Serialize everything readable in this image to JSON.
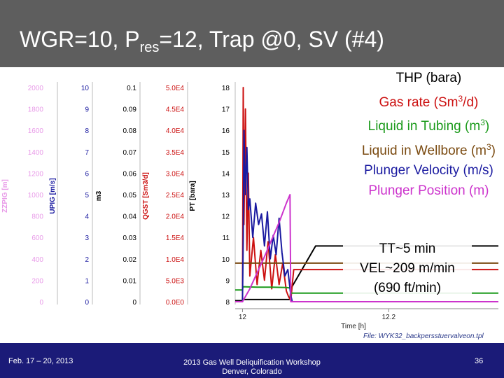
{
  "slide": {
    "title_main": "WGR=10, P",
    "title_sub": "res",
    "title_rest": "=12, Trap @0, SV (#4)"
  },
  "legend": [
    {
      "text": "THP (bara)",
      "color": "#000000"
    },
    {
      "text_before": "Gas rate (Sm",
      "sup": "3",
      "text_after": "/d)",
      "color": "#cc1111"
    },
    {
      "text_before": "Liquid in Tubing (m",
      "sup": "3",
      "text_after": ")",
      "color": "#1a9a1a"
    },
    {
      "text_before": "Liquid in Wellbore (m",
      "sup": "3",
      "text_after": ")",
      "color": "#7a4a10"
    },
    {
      "text": "Plunger Velocity (m/s)",
      "color": "#1a1aa0"
    },
    {
      "text": "Plunger Position (m)",
      "color": "#cc33cc"
    }
  ],
  "note": {
    "line1": "TT~5 min",
    "line2": "VEL~209 m/min",
    "line3": "(690 ft/min)"
  },
  "file_label": "File: WYK32_backpersstuervalveon.tpl",
  "footer": {
    "date": "Feb. 17 – 20, 2013",
    "center_line1": "2013 Gas Well Deliquification Workshop",
    "center_line2": "Denver, Colorado",
    "page": "36"
  },
  "chart_data": {
    "type": "line",
    "xlabel": "Time [h]",
    "x_ticks": [
      "12",
      "12.2"
    ],
    "xlim": [
      11.99,
      12.35
    ],
    "axes": [
      {
        "label": "ZZPIG [m]",
        "color": "#e89ae8",
        "ticks": [
          "2000",
          "1800",
          "1600",
          "1400",
          "1200",
          "1000",
          "800",
          "600",
          "400",
          "200",
          "0"
        ]
      },
      {
        "label": "UPIG [m/s]",
        "color": "#1a1aa0",
        "ticks": [
          "10",
          "9",
          "8",
          "7",
          "6",
          "5",
          "4",
          "3",
          "2",
          "1",
          "0"
        ]
      },
      {
        "label": "m3",
        "color": "#000000",
        "ticks": [
          "0.1",
          "0.09",
          "0.08",
          "0.07",
          "0.06",
          "0.05",
          "0.04",
          "0.03",
          "0.02",
          "0.01",
          "0"
        ]
      },
      {
        "label": "QGST [Sm3/d]",
        "color": "#cc1111",
        "ticks": [
          "5.0E4",
          "4.5E4",
          "4.0E4",
          "3.5E4",
          "3.0E4",
          "2.5E4",
          "2.0E4",
          "1.5E4",
          "1.0E4",
          "5.0E3",
          "0.0E0"
        ]
      },
      {
        "label": "PT [bara]",
        "color": "#000000",
        "ticks": [
          "18",
          "17",
          "16",
          "15",
          "14",
          "13",
          "12",
          "11",
          "10",
          "9",
          "8"
        ]
      }
    ],
    "series": [
      {
        "name": "THP (bara)",
        "color": "#000000",
        "x": [
          11.99,
          12.0,
          12.001,
          12.02,
          12.05,
          12.065,
          12.066,
          12.1,
          12.2,
          12.35
        ],
        "y": [
          8.05,
          8.05,
          8.1,
          8.1,
          8.1,
          8.1,
          8.6,
          10.6,
          10.6,
          10.6
        ]
      },
      {
        "name": "Gas rate (Sm3/d)",
        "color": "#cc1111",
        "x": [
          11.99,
          12.0,
          12.001,
          12.002,
          12.004,
          12.006,
          12.008,
          12.01,
          12.015,
          12.02,
          12.025,
          12.03,
          12.035,
          12.04,
          12.045,
          12.05,
          12.055,
          12.06,
          12.063,
          12.066,
          12.07,
          12.1,
          12.2,
          12.35
        ],
        "y": [
          0,
          0,
          50000,
          18000,
          45000,
          12000,
          30000,
          6000,
          15000,
          4000,
          12000,
          5000,
          14000,
          3000,
          11000,
          4000,
          9000,
          2500,
          1200,
          300,
          7500,
          7500,
          7500,
          7500
        ]
      },
      {
        "name": "Liquid in Tubing (m3)",
        "color": "#1a9a1a",
        "x": [
          11.99,
          12.0,
          12.0005,
          12.02,
          12.04,
          12.06,
          12.065,
          12.066,
          12.1,
          12.35
        ],
        "y": [
          0.0055,
          0.0055,
          0.007,
          0.0068,
          0.0068,
          0.0066,
          0.0064,
          0.004,
          0.004,
          0.004
        ]
      },
      {
        "name": "Liquid in Wellbore (m3)",
        "color": "#7a4a10",
        "x": [
          11.99,
          12.0,
          12.1,
          12.2,
          12.35
        ],
        "y": [
          0.018,
          0.018,
          0.018,
          0.018,
          0.018
        ]
      },
      {
        "name": "Plunger Velocity (m/s)",
        "color": "#1a1aa0",
        "x": [
          11.99,
          12.0,
          12.001,
          12.002,
          12.004,
          12.006,
          12.008,
          12.01,
          12.014,
          12.018,
          12.022,
          12.026,
          12.03,
          12.034,
          12.038,
          12.042,
          12.046,
          12.05,
          12.054,
          12.058,
          12.062,
          12.066,
          12.068,
          12.35
        ],
        "y": [
          0,
          0,
          3,
          8,
          5,
          7.2,
          4.3,
          4.8,
          3,
          4.6,
          3.6,
          4.1,
          2.6,
          4.2,
          2,
          3.1,
          2.2,
          3.9,
          2.3,
          1.2,
          1.5,
          0.3,
          0,
          0
        ]
      },
      {
        "name": "Plunger Position (m)",
        "color": "#cc33cc",
        "x": [
          11.99,
          12.0,
          12.01,
          12.02,
          12.03,
          12.04,
          12.05,
          12.06,
          12.065,
          12.066,
          12.35
        ],
        "y": [
          0,
          0,
          120,
          270,
          420,
          580,
          740,
          920,
          1000,
          0,
          0
        ]
      }
    ]
  }
}
